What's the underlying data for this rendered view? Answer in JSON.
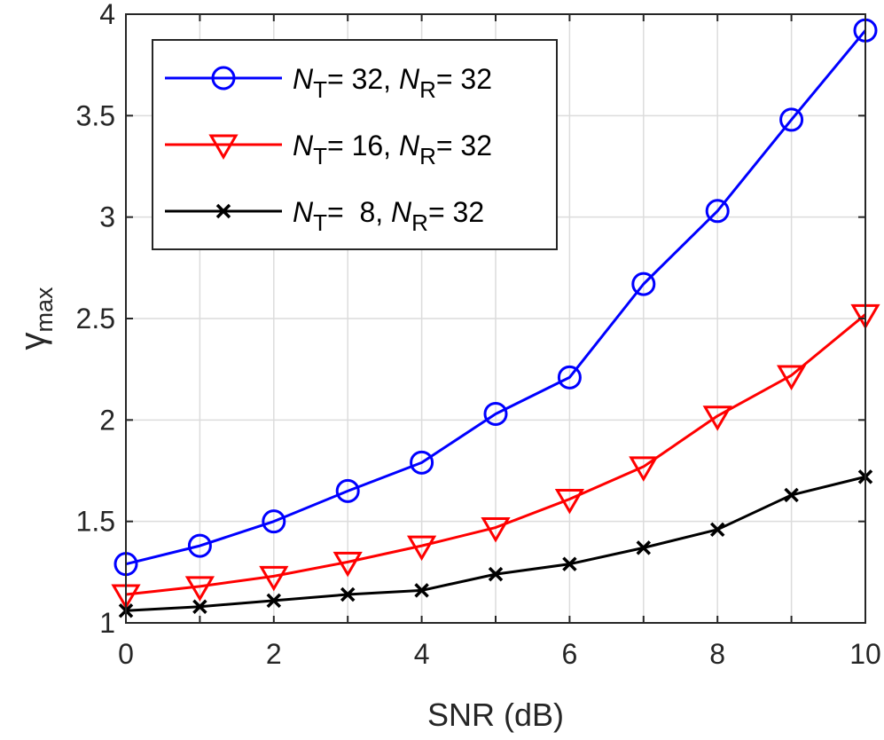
{
  "chart_data": {
    "type": "line",
    "title": "",
    "xlabel": "SNR (dB)",
    "ylabel": {
      "base": "γ",
      "sub": "max"
    },
    "xlim": [
      0,
      10
    ],
    "ylim": [
      1,
      4
    ],
    "x_ticks": [
      0,
      2,
      4,
      6,
      8,
      10
    ],
    "x_tick_labels": [
      "0",
      "2",
      "4",
      "6",
      "8",
      "10"
    ],
    "y_ticks": [
      1,
      1.5,
      2,
      2.5,
      3,
      3.5,
      4
    ],
    "y_tick_labels": [
      "1",
      "1.5",
      "2",
      "2.5",
      "3",
      "3.5",
      "4"
    ],
    "grid": true,
    "legend_position": "top-left",
    "x": [
      0,
      1,
      2,
      3,
      4,
      5,
      6,
      7,
      8,
      9,
      10
    ],
    "series": [
      {
        "id": "nt32",
        "color": "#0000ff",
        "marker": "circle",
        "legend": {
          "nt_sym": "N",
          "nt_sub": "T",
          "nt_val": "= 32, ",
          "nr_sym": "N",
          "nr_sub": "R",
          "nr_val": "= 32"
        },
        "values": [
          1.29,
          1.38,
          1.5,
          1.65,
          1.79,
          2.03,
          2.21,
          2.67,
          3.03,
          3.48,
          3.92
        ]
      },
      {
        "id": "nt16",
        "color": "#ff0000",
        "marker": "triangle-down",
        "legend": {
          "nt_sym": "N",
          "nt_sub": "T",
          "nt_val": "= 16, ",
          "nr_sym": "N",
          "nr_sub": "R",
          "nr_val": "= 32"
        },
        "values": [
          1.14,
          1.18,
          1.23,
          1.3,
          1.38,
          1.47,
          1.61,
          1.77,
          2.02,
          2.22,
          2.52
        ]
      },
      {
        "id": "nt8",
        "color": "#000000",
        "marker": "x",
        "legend": {
          "nt_sym": "N",
          "nt_sub": "T",
          "nt_val": "=  8, ",
          "nr_sym": "N",
          "nr_sub": "R",
          "nr_val": "= 32"
        },
        "values": [
          1.06,
          1.08,
          1.11,
          1.14,
          1.16,
          1.24,
          1.29,
          1.37,
          1.46,
          1.63,
          1.72
        ]
      }
    ]
  }
}
